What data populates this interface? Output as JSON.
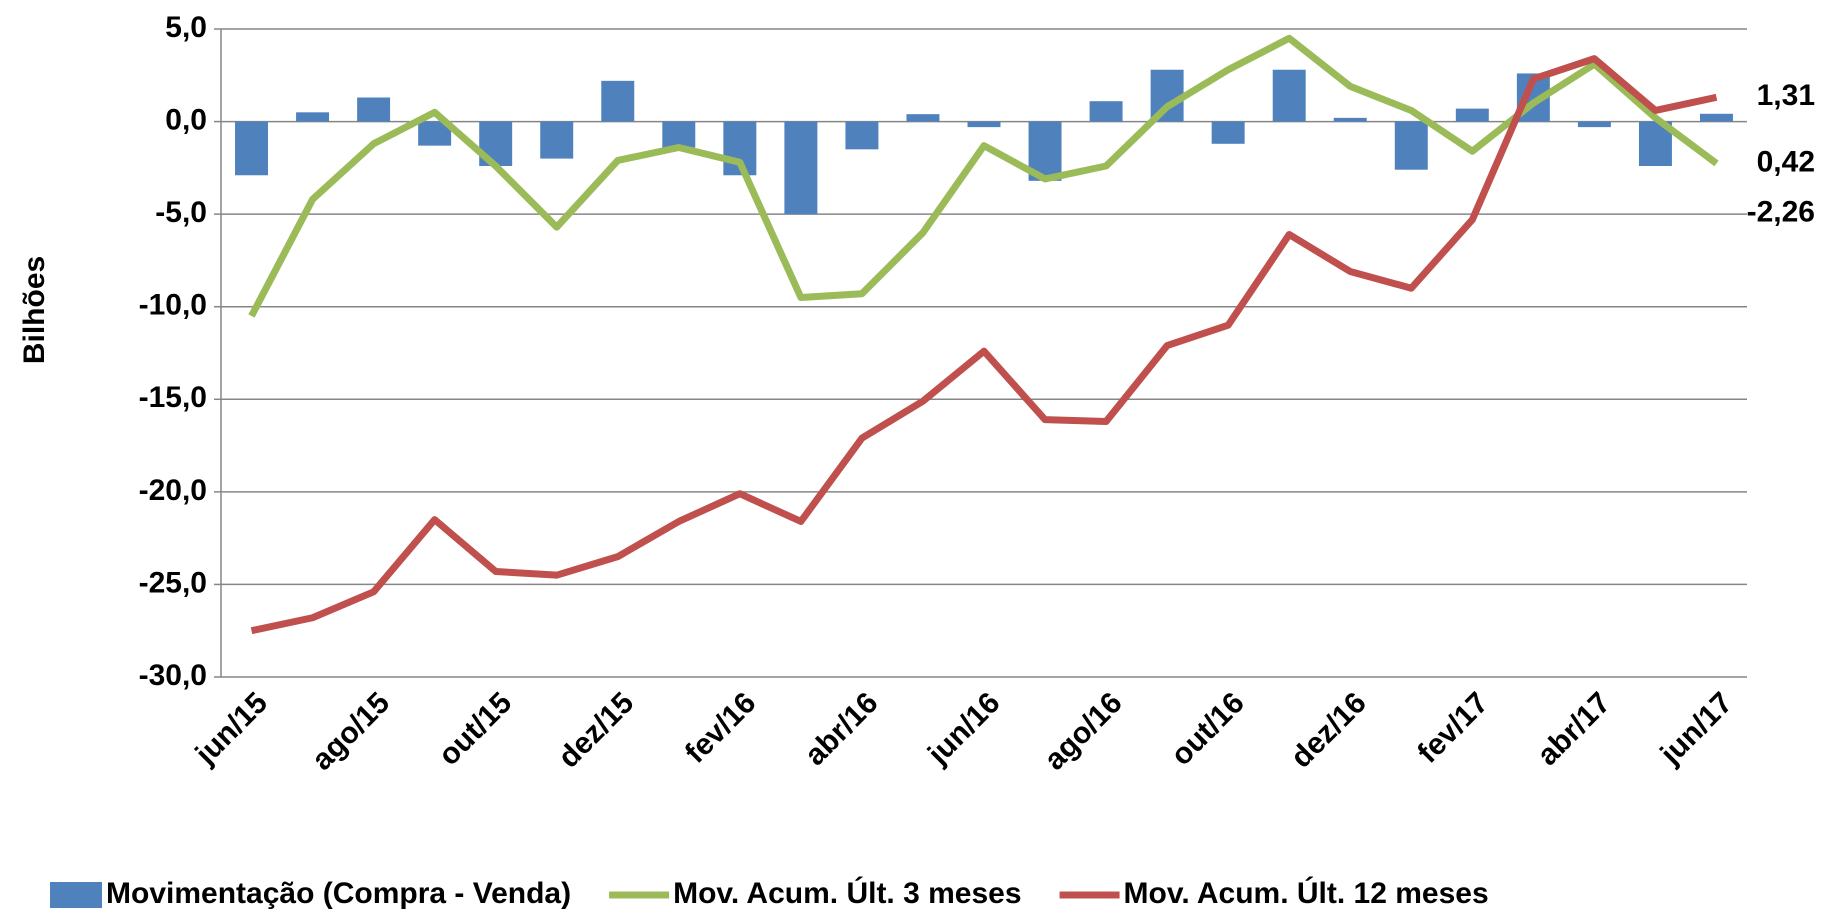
{
  "chart_data": {
    "type": "bar",
    "y_label": "Bilhões",
    "categories": [
      "jun/15",
      null,
      "ago/15",
      null,
      "out/15",
      null,
      "dez/15",
      null,
      "fev/16",
      null,
      "abr/16",
      null,
      "jun/16",
      null,
      "ago/16",
      null,
      "out/16",
      null,
      "dez/16",
      null,
      "fev/17",
      null,
      "abr/17",
      null,
      "jun/17"
    ],
    "ylim": [
      -30,
      5
    ],
    "yticks": [
      {
        "value": -30,
        "label": "-30,0"
      },
      {
        "value": -25,
        "label": "-25,0"
      },
      {
        "value": -20,
        "label": "-20,0"
      },
      {
        "value": -15,
        "label": "-15,0"
      },
      {
        "value": -10,
        "label": "-10,0"
      },
      {
        "value": -5,
        "label": "-5,0"
      },
      {
        "value": 0,
        "label": "0,0"
      },
      {
        "value": 5,
        "label": "5,0"
      }
    ],
    "grid": true,
    "legend": "bottom",
    "series": [
      {
        "name": "Movimentação (Compra - Venda)",
        "type": "bar",
        "color": "#4f81bd",
        "label_color": "#4f81bd",
        "values": [
          -2.9,
          0.5,
          1.3,
          -1.3,
          -2.4,
          -2.0,
          2.2,
          -1.4,
          -2.9,
          -5.0,
          -1.5,
          0.4,
          -0.3,
          -3.2,
          1.1,
          2.8,
          -1.2,
          2.8,
          0.2,
          -2.6,
          0.7,
          2.6,
          -0.3,
          -2.4,
          0.42
        ],
        "value_labels": [
          null,
          null,
          null,
          null,
          null,
          null,
          null,
          null,
          null,
          null,
          null,
          null,
          null,
          null,
          null,
          null,
          null,
          null,
          null,
          null,
          null,
          null,
          null,
          null,
          "0,42"
        ]
      },
      {
        "name": "Mov. Acum. Últ. 3 meses",
        "type": "line",
        "color": "#9bbb59",
        "label_color": "#9bbb59",
        "values": [
          -10.5,
          -4.2,
          -1.2,
          0.5,
          -2.4,
          -5.7,
          -2.1,
          -1.4,
          -2.2,
          -9.5,
          -9.3,
          -6.0,
          -1.3,
          -3.1,
          -2.4,
          0.8,
          2.8,
          4.5,
          1.9,
          0.6,
          -1.6,
          1.0,
          3.1,
          0.2,
          -2.26
        ],
        "value_labels": [
          null,
          null,
          null,
          null,
          null,
          null,
          null,
          null,
          null,
          null,
          null,
          null,
          null,
          null,
          null,
          null,
          null,
          null,
          null,
          null,
          null,
          null,
          null,
          null,
          "-2,26"
        ]
      },
      {
        "name": "Mov. Acum. Últ. 12 meses",
        "type": "line",
        "color": "#c0504d",
        "label_color": "#c00000",
        "values": [
          -27.5,
          -26.8,
          -25.4,
          -21.5,
          -24.3,
          -24.5,
          -23.5,
          -21.6,
          -20.1,
          -21.6,
          -17.1,
          -15.1,
          -12.4,
          -16.1,
          -16.2,
          -12.1,
          -11.0,
          -6.1,
          -8.1,
          -9.0,
          -5.3,
          2.3,
          3.4,
          0.6,
          1.31
        ],
        "value_labels": [
          null,
          null,
          null,
          null,
          null,
          null,
          null,
          null,
          null,
          null,
          null,
          null,
          null,
          null,
          null,
          null,
          null,
          null,
          null,
          null,
          null,
          null,
          null,
          null,
          "1,31"
        ]
      }
    ]
  }
}
